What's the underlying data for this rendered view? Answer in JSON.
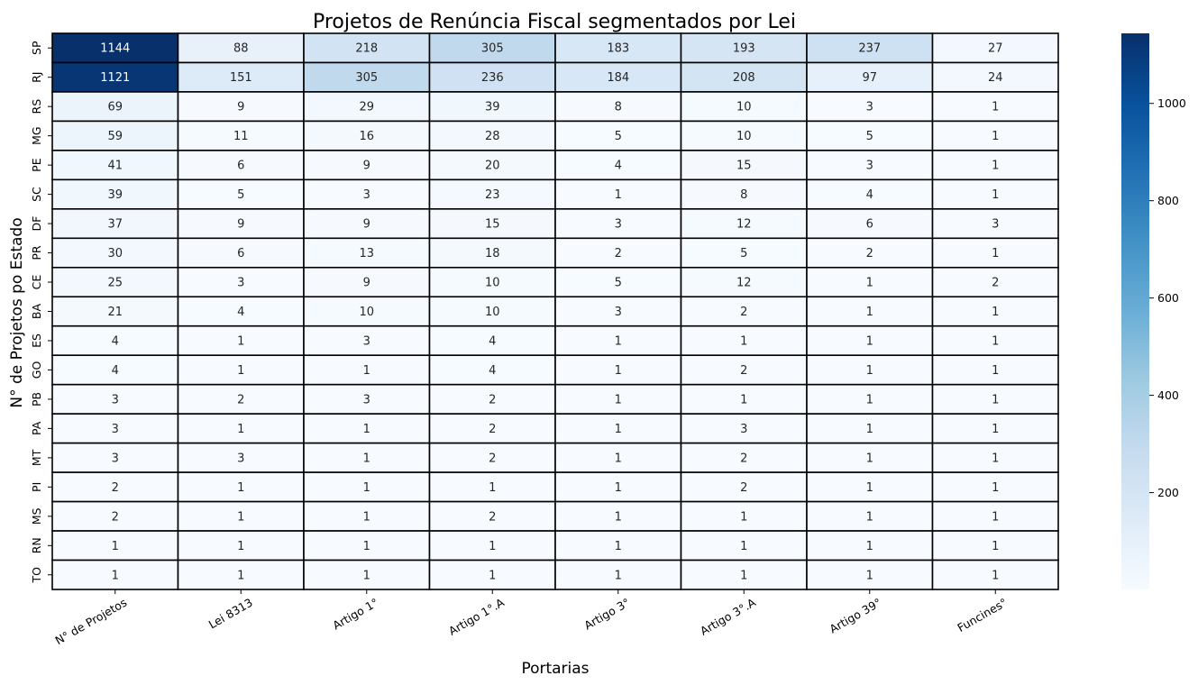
{
  "chart_data": {
    "type": "heatmap",
    "title": "Projetos de Renúncia Fiscal segmentados por Lei",
    "xlabel": "Portarias",
    "ylabel": "N° de Projetos po Estado",
    "columns": [
      "N° de Projetos",
      "Lei 8313",
      "Artigo 1°",
      "Artigo 1°.A",
      "Artigo 3°",
      "Artigo 3°.A",
      "Artigo 39°",
      "Funcines°"
    ],
    "rows": [
      "SP",
      "RJ",
      "RS",
      "MG",
      "PE",
      "SC",
      "DF",
      "PR",
      "CE",
      "BA",
      "ES",
      "GO",
      "PB",
      "PA",
      "MT",
      "PI",
      "MS",
      "RN",
      "TO"
    ],
    "values": [
      [
        1144,
        88,
        218,
        305,
        183,
        193,
        237,
        27
      ],
      [
        1121,
        151,
        305,
        236,
        184,
        208,
        97,
        24
      ],
      [
        69,
        9,
        29,
        39,
        8,
        10,
        3,
        1
      ],
      [
        59,
        11,
        16,
        28,
        5,
        10,
        5,
        1
      ],
      [
        41,
        6,
        9,
        20,
        4,
        15,
        3,
        1
      ],
      [
        39,
        5,
        3,
        23,
        1,
        8,
        4,
        1
      ],
      [
        37,
        9,
        9,
        15,
        3,
        12,
        6,
        3
      ],
      [
        30,
        6,
        13,
        18,
        2,
        5,
        2,
        1
      ],
      [
        25,
        3,
        9,
        10,
        5,
        12,
        1,
        2
      ],
      [
        21,
        4,
        10,
        10,
        3,
        2,
        1,
        1
      ],
      [
        4,
        1,
        3,
        4,
        1,
        1,
        1,
        1
      ],
      [
        4,
        1,
        1,
        4,
        1,
        2,
        1,
        1
      ],
      [
        3,
        2,
        3,
        2,
        1,
        1,
        1,
        1
      ],
      [
        3,
        1,
        1,
        2,
        1,
        3,
        1,
        1
      ],
      [
        3,
        3,
        1,
        2,
        1,
        2,
        1,
        1
      ],
      [
        2,
        1,
        1,
        1,
        1,
        2,
        1,
        1
      ],
      [
        2,
        1,
        1,
        2,
        1,
        1,
        1,
        1
      ],
      [
        1,
        1,
        1,
        1,
        1,
        1,
        1,
        1
      ],
      [
        1,
        1,
        1,
        1,
        1,
        1,
        1,
        1
      ]
    ],
    "colormap": "Blues",
    "color_range": [
      1,
      1144
    ],
    "colorbar_ticks": [
      200,
      400,
      600,
      800,
      1000
    ],
    "annotations": true,
    "cell_border_color": "#000000"
  }
}
